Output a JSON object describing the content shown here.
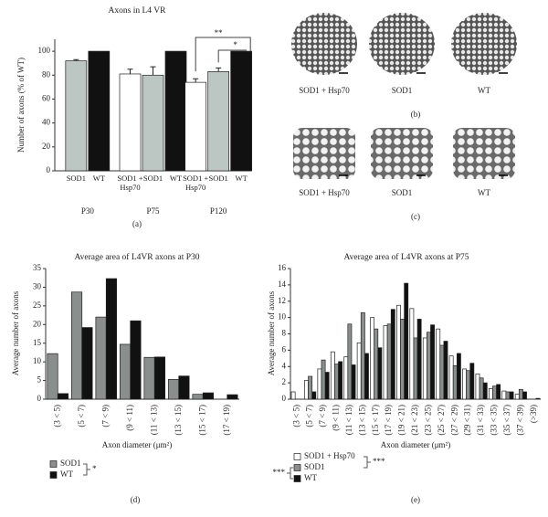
{
  "chart_data": [
    {
      "type": "bar",
      "title": "Axons in L4 VR",
      "y_label": "Number of axons (% of WT)",
      "categories": [
        "P30",
        "P75",
        "P120"
      ],
      "series": [
        {
          "name": "SOD1 + Hsp70",
          "color": "#ffffff",
          "values": [
            null,
            81,
            74
          ],
          "errors": [
            null,
            4,
            3
          ]
        },
        {
          "name": "SOD1",
          "color": "#bcc6c2",
          "values": [
            92,
            80,
            83
          ],
          "errors": [
            1,
            7,
            3
          ]
        },
        {
          "name": "WT",
          "color": "#111111",
          "values": [
            100,
            100,
            100
          ]
        }
      ],
      "ylim": [
        0,
        110
      ],
      "yticks": [
        0,
        20,
        40,
        60,
        80,
        100
      ],
      "annotations": [
        "**",
        "*"
      ],
      "caption": "(a)"
    },
    {
      "type": "micrograph",
      "labels": [
        "SOD1 + Hsp70",
        "SOD1",
        "WT"
      ],
      "caption": "(b)"
    },
    {
      "type": "micrograph",
      "labels": [
        "SOD1 + Hsp70",
        "SOD1",
        "WT"
      ],
      "caption": "(c)"
    },
    {
      "type": "histogram-bar",
      "title": "Average area of L4VR axons at P30",
      "y_label": "Average number of axons",
      "x_label": "Axon diameter (μm²)",
      "categories": [
        "(3 < 5)",
        "(5 < 7)",
        "(7 < 9)",
        "(9 < 11)",
        "(11 < 13)",
        "(13 < 15)",
        "(15 < 17)",
        "(17 < 19)"
      ],
      "series": [
        {
          "name": "SOD1",
          "color": "#8a8f8d",
          "values": [
            12.2,
            28.7,
            22,
            14.7,
            11.2,
            5.3,
            1.3,
            null
          ]
        },
        {
          "name": "WT",
          "color": "#111111",
          "values": [
            1.5,
            19.2,
            32.3,
            21,
            11.3,
            6.2,
            1.7,
            1.2
          ]
        }
      ],
      "ylim": [
        0,
        35
      ],
      "yticks": [
        0,
        5,
        10,
        15,
        20,
        25,
        30,
        35
      ],
      "annotations": [
        "*"
      ],
      "caption": "(d)"
    },
    {
      "type": "histogram-bar",
      "title": "Average area of L4VR axons at P75",
      "y_label": "Average number of axons",
      "x_label": "Axon diameter (μm²)",
      "categories": [
        "(3 < 5)",
        "(5 < 7)",
        "(7 < 9)",
        "(9 < 11)",
        "(11 < 13)",
        "(13 < 15)",
        "(15 < 17)",
        "(17 < 19)",
        "(19 < 21)",
        "(21 < 23)",
        "(23 < 25)",
        "(25 < 27)",
        "(27 < 29)",
        "(29 < 31)",
        "(31 < 33)",
        "(33 < 35)",
        "(35 < 37)",
        "(37 < 39)",
        "(>39)"
      ],
      "series": [
        {
          "name": "SOD1 + Hsp70",
          "color": "#ffffff",
          "values": [
            0.9,
            2.3,
            3.7,
            5.8,
            5.2,
            6.9,
            10.0,
            9.0,
            11.5,
            11.1,
            7.5,
            8.6,
            5.3,
            3.7,
            3.1,
            1.3,
            1.0,
            0.6,
            null
          ]
        },
        {
          "name": "SOD1",
          "color": "#8a8f8d",
          "values": [
            null,
            2.8,
            4.8,
            4.3,
            9.2,
            10.6,
            8.6,
            9.2,
            9.8,
            7.5,
            8.2,
            6.6,
            4.1,
            3.5,
            2.6,
            1.6,
            0.9,
            1.2,
            null
          ]
        },
        {
          "name": "WT",
          "color": "#111111",
          "values": [
            null,
            0.9,
            3.3,
            4.6,
            4.2,
            5.6,
            6.3,
            11.0,
            14.2,
            9.8,
            9.1,
            7.1,
            5.6,
            4.4,
            2.0,
            1.8,
            0.9,
            0.9,
            0.1
          ]
        }
      ],
      "ylim": [
        0,
        16
      ],
      "yticks": [
        0,
        2,
        4,
        6,
        8,
        10,
        12,
        14,
        16
      ],
      "annotations": [
        "***",
        "***"
      ],
      "caption": "(e)"
    }
  ]
}
